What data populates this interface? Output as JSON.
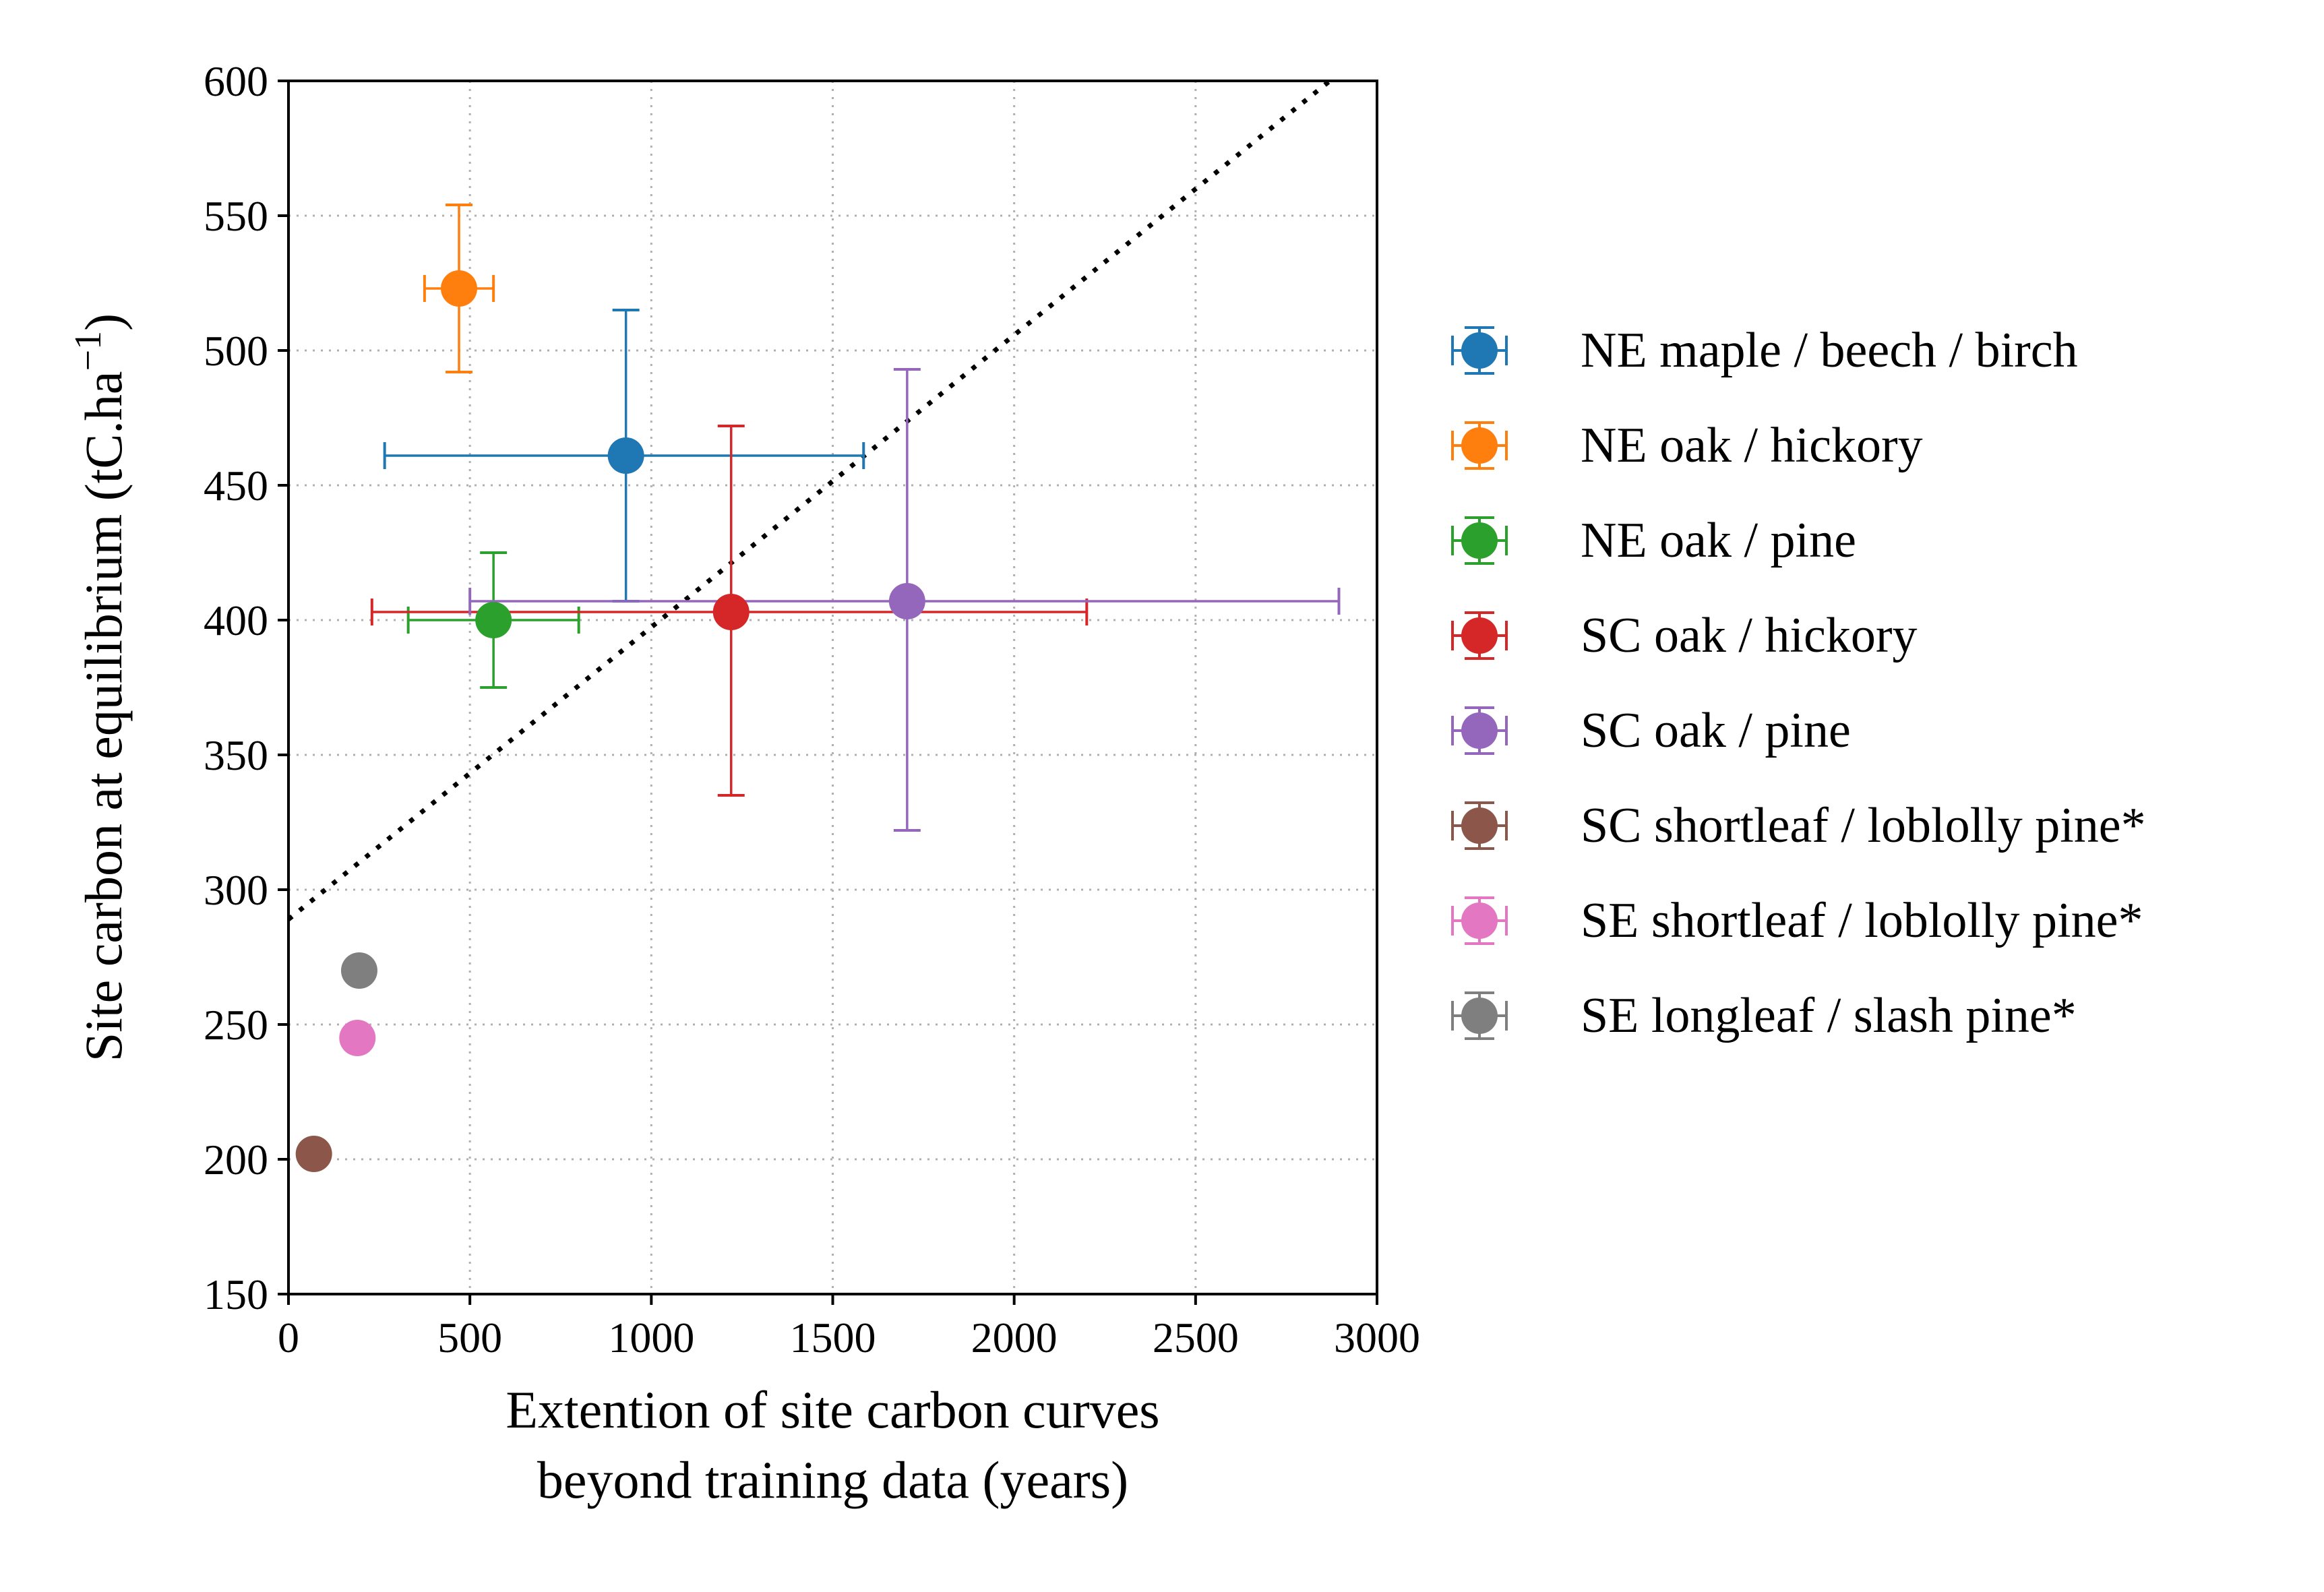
{
  "chart_data": {
    "type": "scatter",
    "title": "",
    "xlabel_lines": [
      "Extention of site carbon curves",
      "beyond training data (years)"
    ],
    "ylabel": "Site carbon at equilibrium (tC.ha",
    "ylabel_unit_sup": "−1",
    "ylabel_close": ")",
    "xlim": [
      0,
      3000
    ],
    "ylim": [
      150,
      600
    ],
    "xticks": [
      0,
      500,
      1000,
      1500,
      2000,
      2500,
      3000
    ],
    "yticks": [
      150,
      200,
      250,
      300,
      350,
      400,
      450,
      500,
      550,
      600
    ],
    "xtick_labels": [
      "0",
      "500",
      "1000",
      "1500",
      "2000",
      "2500",
      "3000"
    ],
    "ytick_labels": [
      "150",
      "200",
      "250",
      "300",
      "350",
      "400",
      "450",
      "500",
      "550",
      "600"
    ],
    "grid": true,
    "legend_position": "outside-right",
    "reference_line": {
      "style": "dotted",
      "color": "#000000",
      "x": [
        0,
        2870
      ],
      "y": [
        289,
        600
      ]
    },
    "series": [
      {
        "name": "NE maple / beech / birch",
        "color": "#1f77b4",
        "x": 930,
        "y": 461,
        "xerr": [
          265,
          1585
        ],
        "yerr": [
          407,
          515
        ]
      },
      {
        "name": "NE oak / hickory",
        "color": "#ff7f0e",
        "x": 470,
        "y": 523,
        "xerr": [
          375,
          565
        ],
        "yerr": [
          492,
          554
        ]
      },
      {
        "name": "NE oak / pine",
        "color": "#2ca02c",
        "x": 565,
        "y": 400,
        "xerr": [
          330,
          800
        ],
        "yerr": [
          375,
          425
        ]
      },
      {
        "name": "SC oak / hickory",
        "color": "#d62728",
        "x": 1220,
        "y": 403,
        "xerr": [
          230,
          2200
        ],
        "yerr": [
          335,
          472
        ]
      },
      {
        "name": "SC oak / pine",
        "color": "#9467bd",
        "x": 1705,
        "y": 407,
        "xerr": [
          500,
          2895
        ],
        "yerr": [
          322,
          493
        ]
      },
      {
        "name": "SC shortleaf / loblolly pine*",
        "color": "#8c564b",
        "x": 70,
        "y": 202,
        "xerr": null,
        "yerr": null
      },
      {
        "name": "SE shortleaf / loblolly pine*",
        "color": "#e377c2",
        "x": 190,
        "y": 245,
        "xerr": null,
        "yerr": null
      },
      {
        "name": "SE longleaf / slash pine*",
        "color": "#7f7f7f",
        "x": 195,
        "y": 270,
        "xerr": null,
        "yerr": null
      }
    ]
  }
}
